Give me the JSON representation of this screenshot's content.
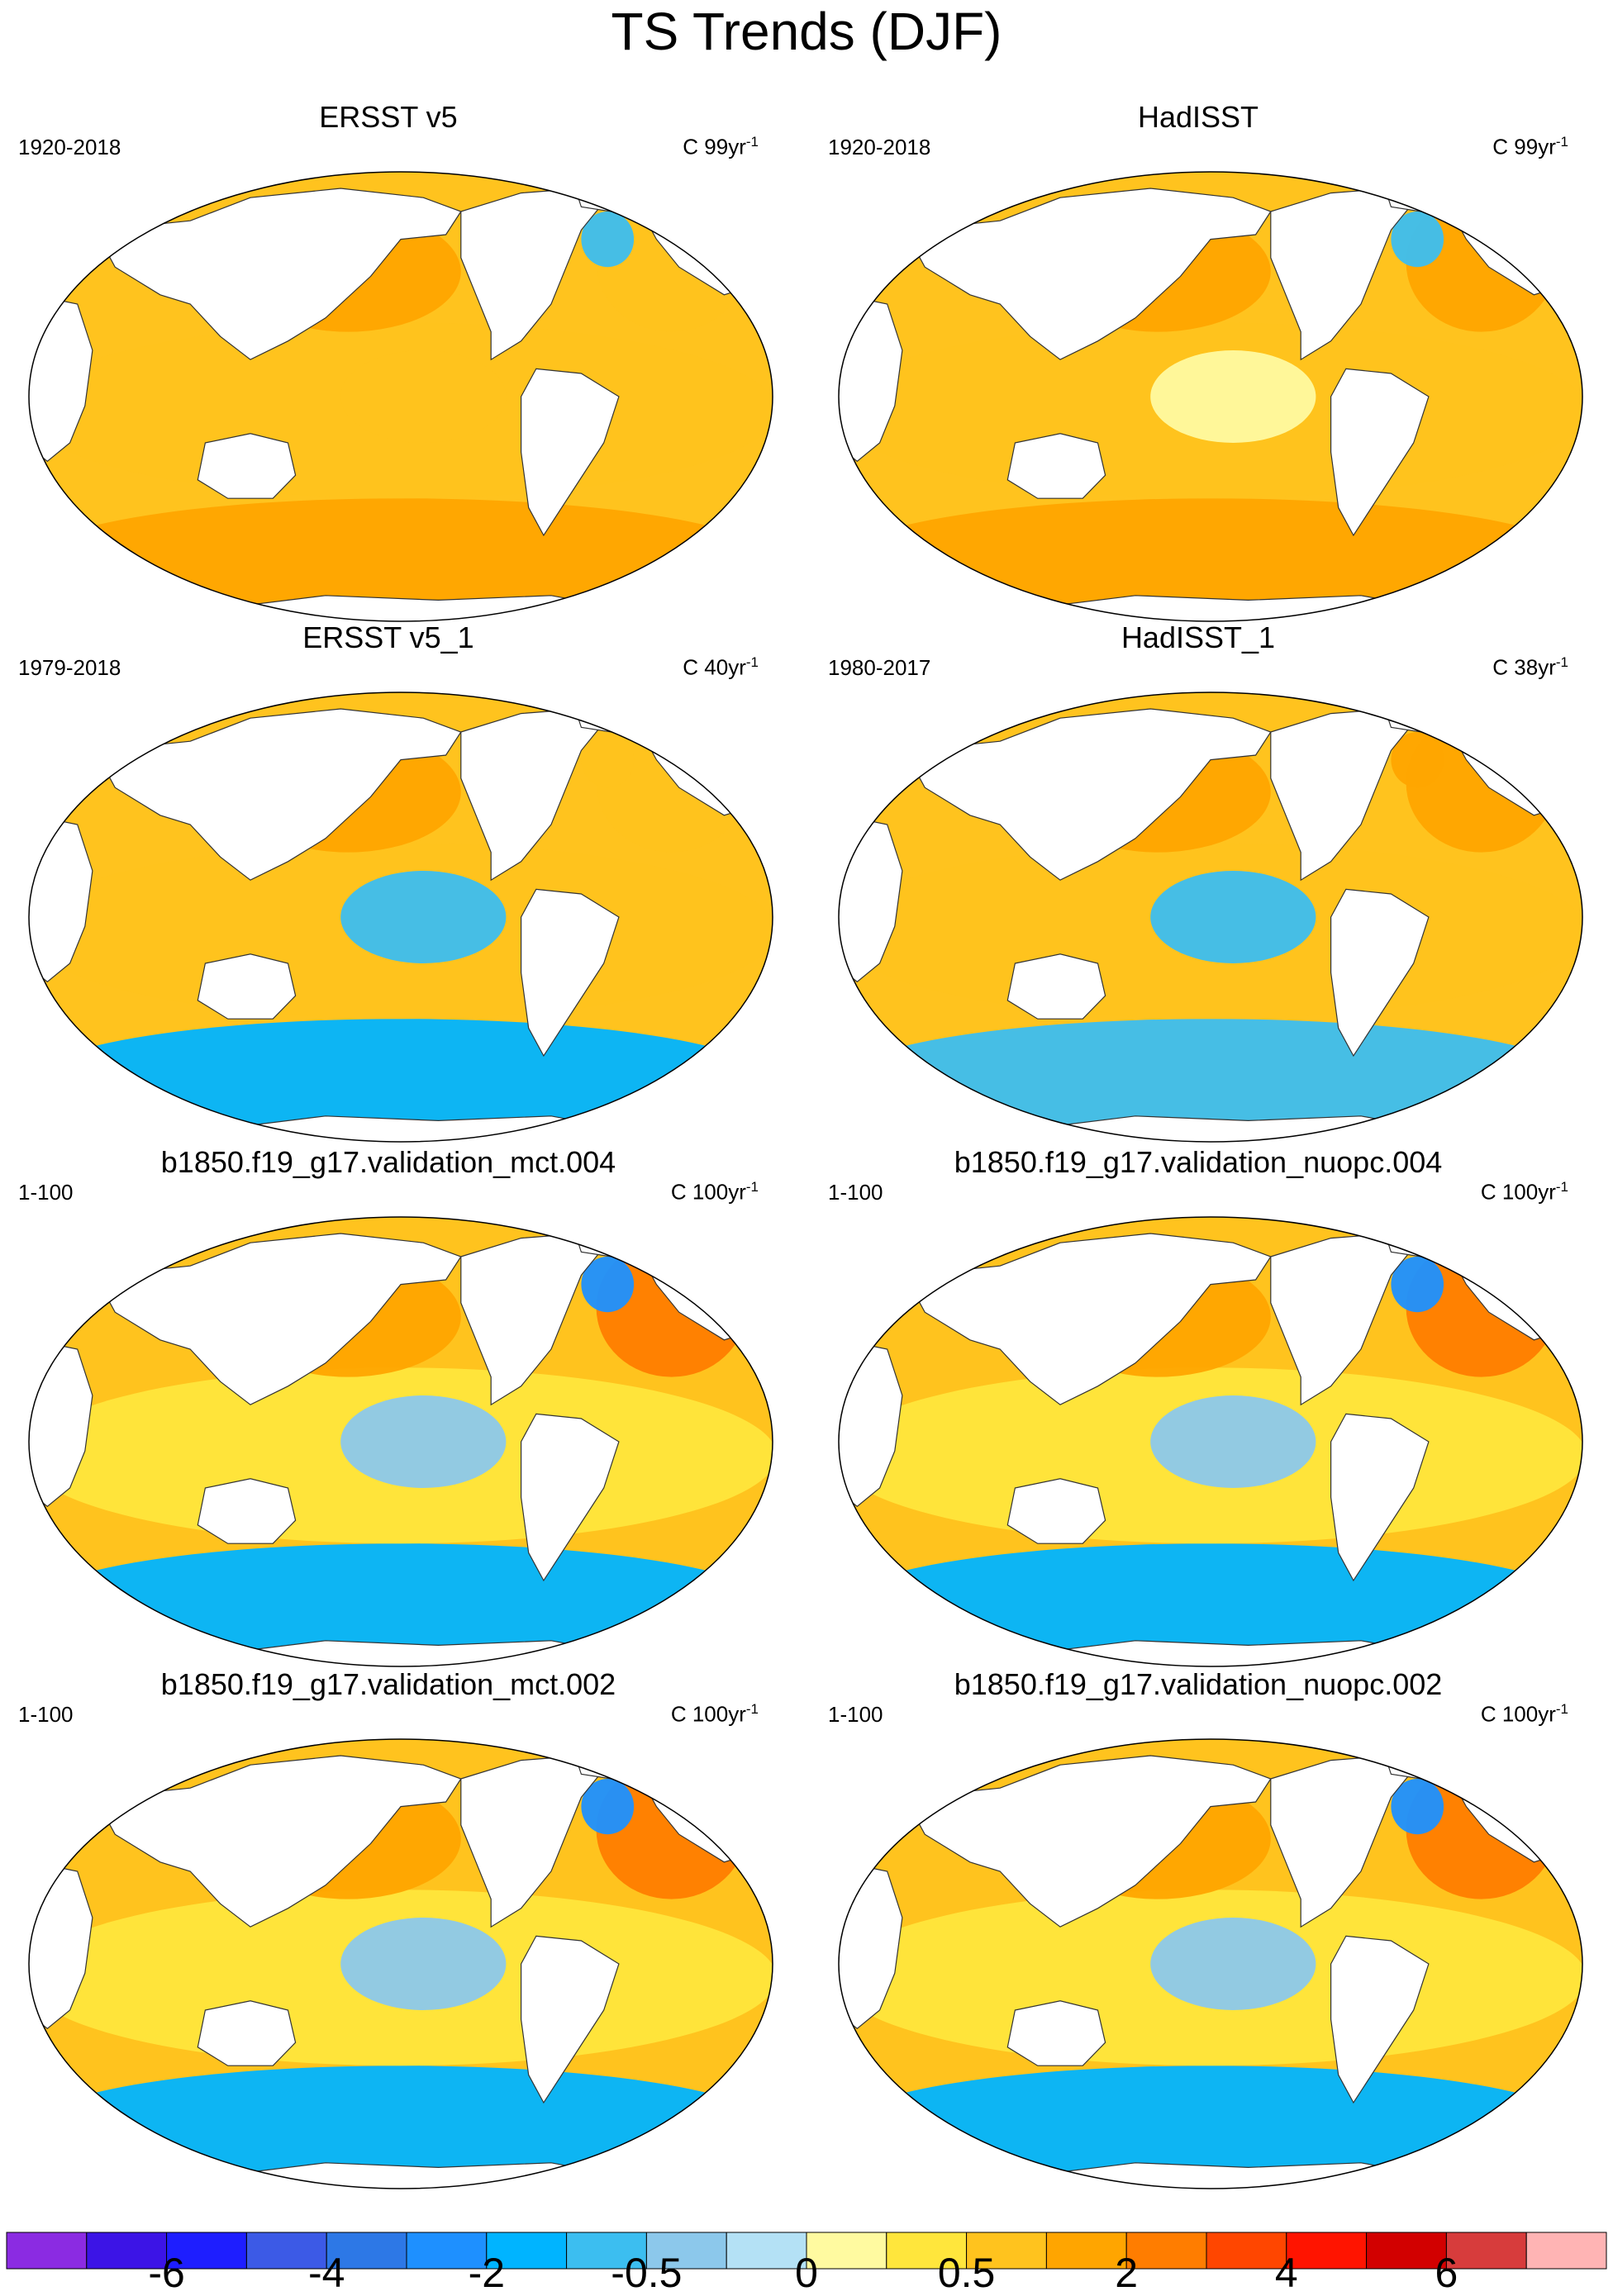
{
  "title": "TS Trends (DJF)",
  "chart_data": {
    "type": "heatmap",
    "title": "TS Trends (DJF)",
    "variable": "TS",
    "season": "DJF",
    "projection": "Robinson (Pacific-centered global map)",
    "panels": [
      {
        "name": "ERSST v5",
        "period": "1920-2018",
        "units_base": "C 99yr",
        "units_exp": "-1",
        "pattern": {
          "tropics": 0.9,
          "south_ocean": 1.2,
          "north_pacific": 1.0,
          "north_atlantic": 0.8,
          "gulf_stream": -1.0,
          "east_pacific": 0.6
        }
      },
      {
        "name": "HadISST",
        "period": "1920-2018",
        "units_base": "C 99yr",
        "units_exp": "-1",
        "pattern": {
          "tropics": 0.7,
          "south_ocean": 1.0,
          "north_pacific": 1.1,
          "north_atlantic": 1.0,
          "gulf_stream": -0.7,
          "east_pacific": 0.2
        }
      },
      {
        "name": "ERSST v5_1",
        "period": "1979-2018",
        "units_base": "C 40yr",
        "units_exp": "-1",
        "pattern": {
          "tropics": 0.8,
          "south_ocean": -1.2,
          "north_pacific": 1.2,
          "north_atlantic": 0.9,
          "gulf_stream": 0.8,
          "east_pacific": -0.8
        }
      },
      {
        "name": "HadISST_1",
        "period": "1980-2017",
        "units_base": "C 38yr",
        "units_exp": "-1",
        "pattern": {
          "tropics": 0.8,
          "south_ocean": -0.8,
          "north_pacific": 1.0,
          "north_atlantic": 1.2,
          "gulf_stream": 1.8,
          "east_pacific": -0.9
        }
      },
      {
        "name": "b1850.f19_g17.validation_mct.004",
        "period": "1-100",
        "units_base": "C 100yr",
        "units_exp": "-1",
        "pattern": {
          "tropics": 0.3,
          "south_ocean": -2.0,
          "north_pacific": 1.2,
          "north_atlantic": 2.2,
          "gulf_stream": -2.5,
          "east_pacific": -0.5
        }
      },
      {
        "name": "b1850.f19_g17.validation_nuopc.004",
        "period": "1-100",
        "units_base": "C 100yr",
        "units_exp": "-1",
        "pattern": {
          "tropics": 0.3,
          "south_ocean": -1.8,
          "north_pacific": 1.3,
          "north_atlantic": 2.4,
          "gulf_stream": -2.5,
          "east_pacific": -0.4
        }
      },
      {
        "name": "b1850.f19_g17.validation_mct.002",
        "period": "1-100",
        "units_base": "C 100yr",
        "units_exp": "-1",
        "pattern": {
          "tropics": 0.4,
          "south_ocean": -1.6,
          "north_pacific": 1.3,
          "north_atlantic": 2.6,
          "gulf_stream": -2.6,
          "east_pacific": -0.3
        }
      },
      {
        "name": "b1850.f19_g17.validation_nuopc.002",
        "period": "1-100",
        "units_base": "C 100yr",
        "units_exp": "-1",
        "pattern": {
          "tropics": 0.4,
          "south_ocean": -1.5,
          "north_pacific": 1.5,
          "north_atlantic": 2.8,
          "gulf_stream": -2.5,
          "east_pacific": -0.3
        }
      }
    ],
    "colorbar": {
      "levels": [
        -7,
        -6,
        -5,
        -4,
        -3,
        -2,
        -1,
        -0.5,
        -0.25,
        0,
        0.25,
        0.5,
        1,
        2,
        3,
        4,
        5,
        6,
        7
      ],
      "colors": [
        "#8b2be2",
        "#3c14e6",
        "#1e1eff",
        "#3c5ae6",
        "#2d78e6",
        "#1e90ff",
        "#00b4ff",
        "#3cbef0",
        "#8cc8eb",
        "#b4e1f5",
        "#fffaa0",
        "#ffe63c",
        "#ffc31e",
        "#ffa500",
        "#ff7d00",
        "#ff4600",
        "#ff1400",
        "#d20000",
        "#d73c3c",
        "#ffb4b4"
      ],
      "tick_labels": [
        "-6",
        "-4",
        "-2",
        "-0.5",
        "0",
        "0.5",
        "2",
        "4",
        "6"
      ]
    }
  }
}
